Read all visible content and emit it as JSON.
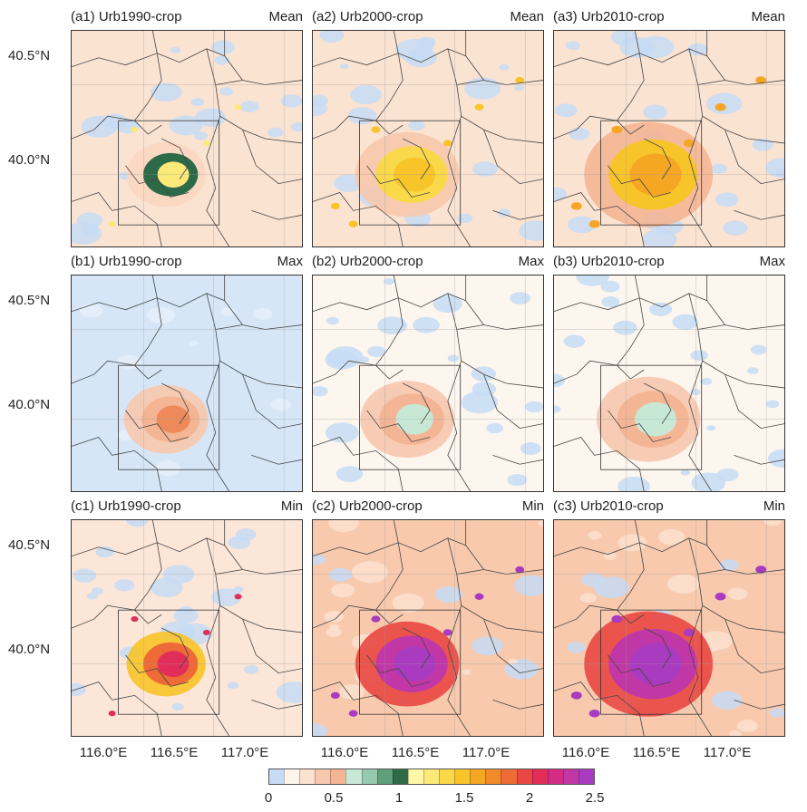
{
  "chart_data": {
    "type": "heatmap",
    "panels": [
      {
        "title": "(a1) Urb1990-crop",
        "stat": "Mean",
        "urban": 1,
        "base": "#fbe3d2"
      },
      {
        "title": "(a2) Urb2000-crop",
        "stat": "Mean",
        "urban": 2,
        "base": "#fbe3d2"
      },
      {
        "title": "(a3) Urb2010-crop",
        "stat": "Mean",
        "urban": 3,
        "base": "#fbe3d2"
      },
      {
        "title": "(b1) Urb1990-crop",
        "stat": "Max",
        "urban": 1,
        "base": "#d6e6f7"
      },
      {
        "title": "(b2) Urb2000-crop",
        "stat": "Max",
        "urban": 2,
        "base": "#fdf6ee"
      },
      {
        "title": "(b3) Urb2010-crop",
        "stat": "Max",
        "urban": 3,
        "base": "#fdf6ee"
      },
      {
        "title": "(c1) Urb1990-crop",
        "stat": "Min",
        "urban": 1,
        "base": "#fbe6d8"
      },
      {
        "title": "(c2) Urb2000-crop",
        "stat": "Min",
        "urban": 2,
        "base": "#f8c9ad"
      },
      {
        "title": "(c3) Urb2010-crop",
        "stat": "Min",
        "urban": 3,
        "base": "#f8c9ad"
      }
    ],
    "y_ticks": [
      "40.5°N",
      "40.0°N"
    ],
    "x_ticks": [
      "116.0°E",
      "116.5°E",
      "117.0°E"
    ],
    "colorbar": {
      "min": 0,
      "max": 2.5,
      "tick_labels": [
        "0",
        "0.5",
        "1",
        "1.5",
        "2",
        "2.5"
      ],
      "colors": [
        "#c6dcf5",
        "#fdf5ec",
        "#fbe1cf",
        "#f7c8ad",
        "#f4b594",
        "#c8e8d6",
        "#96c9ad",
        "#5f9f7c",
        "#2d6a48",
        "#fff7a8",
        "#fbe97a",
        "#f9d94a",
        "#f7c429",
        "#f5a623",
        "#f28a2a",
        "#ee6a36",
        "#e84743",
        "#e22d5a",
        "#d32c85",
        "#c237a6",
        "#a83bbf"
      ]
    }
  }
}
